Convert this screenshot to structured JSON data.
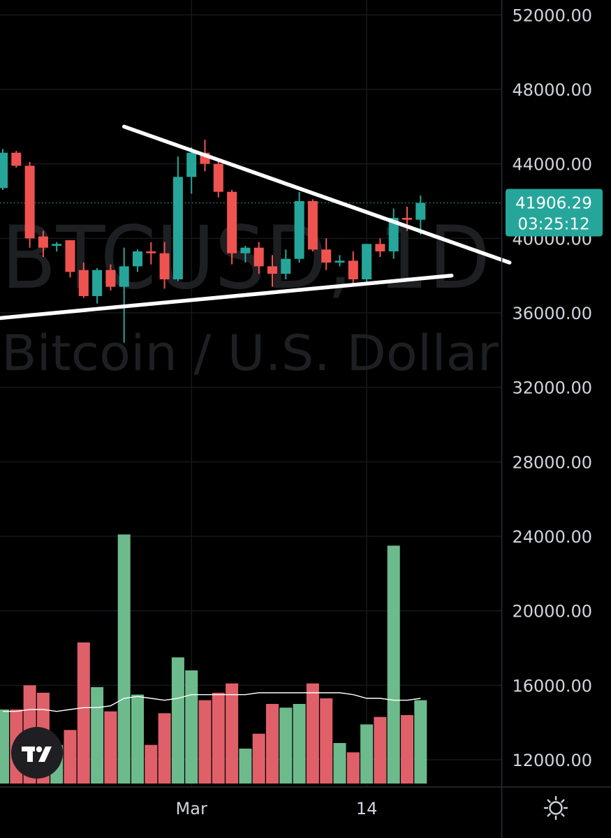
{
  "chart_data": {
    "type": "candlestick",
    "symbol_watermark": "BTCUSD, 1D",
    "name_watermark": "Bitcoin / U.S. Dollar",
    "y_ticks": [
      "52000.00",
      "48000.00",
      "44000.00",
      "40000.00",
      "36000.00",
      "32000.00",
      "28000.00",
      "24000.00",
      "20000.00",
      "16000.00",
      "12000.00"
    ],
    "x_ticks": [
      {
        "label": "Mar",
        "index": 14
      },
      {
        "label": "14",
        "index": 27
      }
    ],
    "ylim": [
      10800,
      52800
    ],
    "last_price": "41906.29",
    "countdown": "03:25:12",
    "grid": true,
    "colors": {
      "up": "#26a69a",
      "down": "#ef5350",
      "vol_up": "#6dbb8c",
      "vol_down": "#e0606a",
      "line": "#ffffff",
      "bg": "#000000",
      "price_tag": "#26a69a"
    },
    "candles": [
      {
        "o": 42700,
        "h": 44800,
        "l": 42600,
        "c": 44600
      },
      {
        "o": 44600,
        "h": 44700,
        "l": 43800,
        "c": 43900
      },
      {
        "o": 43900,
        "h": 44100,
        "l": 39500,
        "c": 40000
      },
      {
        "o": 40100,
        "h": 40400,
        "l": 39000,
        "c": 39500
      },
      {
        "o": 39600,
        "h": 39800,
        "l": 39300,
        "c": 39700
      },
      {
        "o": 39900,
        "h": 39900,
        "l": 37900,
        "c": 38200
      },
      {
        "o": 38300,
        "h": 38700,
        "l": 36800,
        "c": 36900
      },
      {
        "o": 36900,
        "h": 38400,
        "l": 36500,
        "c": 38300
      },
      {
        "o": 38300,
        "h": 38600,
        "l": 37200,
        "c": 37400
      },
      {
        "o": 37400,
        "h": 39500,
        "l": 34400,
        "c": 38500
      },
      {
        "o": 38500,
        "h": 39400,
        "l": 38200,
        "c": 39300
      },
      {
        "o": 39300,
        "h": 39800,
        "l": 38600,
        "c": 39200
      },
      {
        "o": 39200,
        "h": 39800,
        "l": 37300,
        "c": 37800
      },
      {
        "o": 37800,
        "h": 44400,
        "l": 37700,
        "c": 43300
      },
      {
        "o": 43300,
        "h": 44900,
        "l": 42400,
        "c": 44600
      },
      {
        "o": 44600,
        "h": 45300,
        "l": 43600,
        "c": 44000
      },
      {
        "o": 44000,
        "h": 44200,
        "l": 42200,
        "c": 42500
      },
      {
        "o": 42500,
        "h": 42600,
        "l": 38600,
        "c": 39200
      },
      {
        "o": 39200,
        "h": 39600,
        "l": 38700,
        "c": 39500
      },
      {
        "o": 39500,
        "h": 39800,
        "l": 38100,
        "c": 38500
      },
      {
        "o": 38500,
        "h": 39100,
        "l": 37400,
        "c": 38100
      },
      {
        "o": 38100,
        "h": 39400,
        "l": 37800,
        "c": 38900
      },
      {
        "o": 38900,
        "h": 42500,
        "l": 38700,
        "c": 42000
      },
      {
        "o": 42000,
        "h": 42100,
        "l": 39300,
        "c": 39400
      },
      {
        "o": 39400,
        "h": 40000,
        "l": 38300,
        "c": 38700
      },
      {
        "o": 38700,
        "h": 39100,
        "l": 38500,
        "c": 38800
      },
      {
        "o": 38800,
        "h": 39300,
        "l": 37600,
        "c": 37800
      },
      {
        "o": 37800,
        "h": 39700,
        "l": 37600,
        "c": 39700
      },
      {
        "o": 39700,
        "h": 40000,
        "l": 39000,
        "c": 39300
      },
      {
        "o": 39300,
        "h": 41600,
        "l": 38900,
        "c": 41100
      },
      {
        "o": 41100,
        "h": 41700,
        "l": 40400,
        "c": 41000
      },
      {
        "o": 41000,
        "h": 42300,
        "l": 40200,
        "c": 41906
      }
    ],
    "volume_scaled": [
      14700,
      14700,
      16000,
      15600,
      12800,
      13600,
      18300,
      15900,
      14600,
      24100,
      15500,
      12800,
      14500,
      17500,
      16800,
      15200,
      15600,
      16100,
      12600,
      13400,
      15000,
      14800,
      15000,
      16100,
      15300,
      12900,
      12400,
      13900,
      14300,
      23500,
      14400,
      15200
    ],
    "volume_ma_scaled": [
      14600,
      14600,
      14700,
      14700,
      14600,
      14700,
      14800,
      14800,
      14900,
      15300,
      15400,
      15300,
      15200,
      15300,
      15500,
      15500,
      15500,
      15500,
      15500,
      15600,
      15600,
      15600,
      15600,
      15600,
      15600,
      15600,
      15500,
      15300,
      15300,
      15200,
      15200,
      15300
    ],
    "trendlines": [
      {
        "i1": 9,
        "p1": 46000,
        "i2": 37.6,
        "p2": 38700
      },
      {
        "i1": -0.5,
        "p1": 35700,
        "i2": 33.3,
        "p2": 38000
      }
    ]
  }
}
